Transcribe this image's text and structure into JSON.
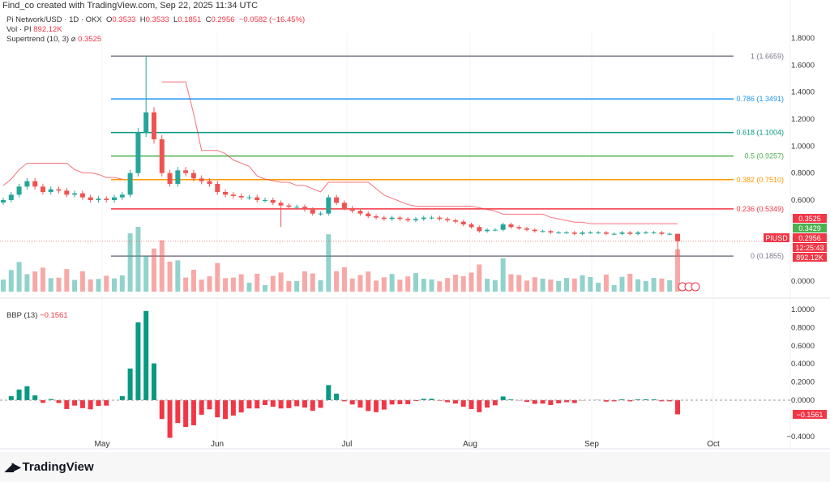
{
  "header": {
    "credit": "Find_co created with TradingView.com, Sep 22, 2025 11:34 UTC",
    "symbol": "Pi Network/USD · 1D · OKX",
    "o_label": "O",
    "o": "0.3533",
    "h_label": "H",
    "h": "0.3533",
    "l_label": "L",
    "l": "0.1851",
    "c_label": "C",
    "c": "0.2956",
    "change": "−0.0582 (−16.45%)",
    "vol_label": "Vol · PI",
    "vol": "892.12K",
    "st_label": "Supertrend (10, 3)",
    "st": "0.3525"
  },
  "bbp_header": {
    "label": "BBP (13)",
    "value": "−0.1561"
  },
  "brand": "TradingView",
  "chart_data": [
    {
      "type": "candlestick",
      "title": "Pi Network/USD 1D OKX",
      "interval": "2D bars approx",
      "start_date": "2025-04-05",
      "end_date": "2025-09-22",
      "x_ticks": [
        "May",
        "Jun",
        "Jul",
        "Aug",
        "Sep",
        "Oct"
      ],
      "y_ticks": [
        "1.8000",
        "1.6000",
        "1.4000",
        "1.2000",
        "1.0000",
        "0.8000",
        "0.6000",
        "0.0000"
      ],
      "ylim": [
        0,
        1.8
      ],
      "close": [
        0.6,
        0.64,
        0.7,
        0.74,
        0.7,
        0.66,
        0.68,
        0.67,
        0.64,
        0.65,
        0.62,
        0.6,
        0.61,
        0.6,
        0.62,
        0.64,
        0.8,
        1.1,
        1.25,
        1.05,
        0.8,
        0.72,
        0.82,
        0.8,
        0.76,
        0.74,
        0.72,
        0.66,
        0.64,
        0.63,
        0.62,
        0.62,
        0.6,
        0.6,
        0.58,
        0.56,
        0.55,
        0.55,
        0.53,
        0.5,
        0.5,
        0.62,
        0.58,
        0.54,
        0.52,
        0.5,
        0.48,
        0.47,
        0.46,
        0.47,
        0.46,
        0.45,
        0.46,
        0.47,
        0.47,
        0.46,
        0.45,
        0.44,
        0.42,
        0.4,
        0.37,
        0.38,
        0.38,
        0.42,
        0.4,
        0.39,
        0.38,
        0.37,
        0.37,
        0.36,
        0.36,
        0.36,
        0.35,
        0.36,
        0.36,
        0.36,
        0.35,
        0.35,
        0.36,
        0.35,
        0.36,
        0.36,
        0.36,
        0.35,
        0.35,
        0.2956
      ],
      "fib_levels": [
        {
          "label": "1 (1.6659)",
          "value": 1.6659,
          "color": "#787b86"
        },
        {
          "label": "0.786 (1.3491)",
          "value": 1.3491,
          "color": "#2196f3"
        },
        {
          "label": "0.618 (1.1004)",
          "value": 1.1004,
          "color": "#089981"
        },
        {
          "label": "0.5 (0.9257)",
          "value": 0.9257,
          "color": "#4caf50"
        },
        {
          "label": "0.382 (0.7510)",
          "value": 0.751,
          "color": "#ff9800"
        },
        {
          "label": "0.236 (0.5349)",
          "value": 0.5349,
          "color": "#f23645"
        },
        {
          "label": "0 (0.1855)",
          "value": 0.1855,
          "color": "#787b86"
        }
      ],
      "price_tags": [
        {
          "text": "0.3525",
          "color": "#f23645"
        },
        {
          "text": "0.3429",
          "color": "#4caf50"
        },
        {
          "text": "0.2956",
          "color": "#f23645"
        },
        {
          "text": "12:25:43",
          "color": "#f23645"
        },
        {
          "text": "892.12K",
          "color": "#f23645"
        }
      ],
      "symbol_tag": "PIUSD",
      "colors": {
        "up": "#26a69a",
        "down": "#ef5350",
        "supertrend": "#f23645"
      }
    },
    {
      "type": "bar",
      "title": "BBP (13)",
      "y_ticks": [
        "1.0000",
        "0.8000",
        "0.6000",
        "0.4000",
        "0.2000",
        "0.0000",
        "−0.4000"
      ],
      "ylim": [
        -0.4,
        1.0
      ],
      "last": "−0.1561"
    }
  ]
}
